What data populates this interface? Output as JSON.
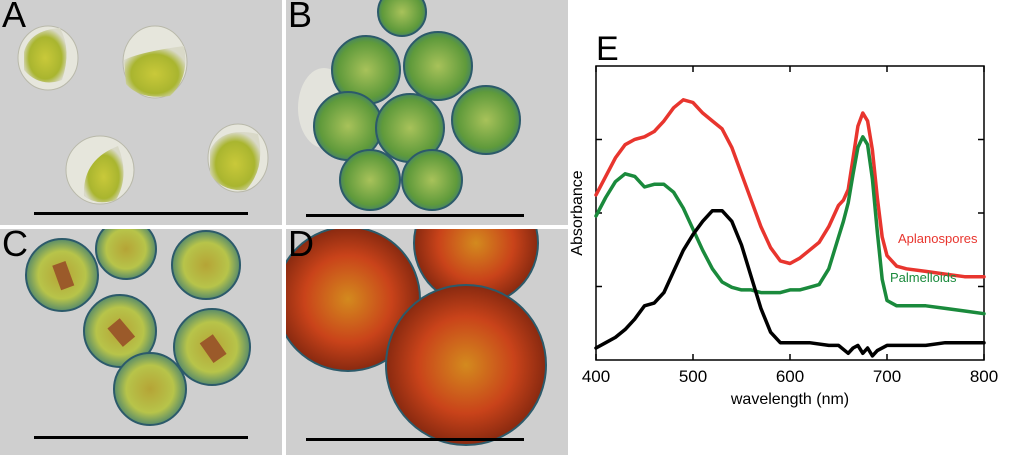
{
  "panels": [
    {
      "label": "A"
    },
    {
      "label": "B"
    },
    {
      "label": "C"
    },
    {
      "label": "D"
    }
  ],
  "colors": {
    "aplanospores": "#e8352e",
    "palmelloids": "#1a8a3c",
    "third": "#000000",
    "background_micrograph": "#cfcfcf"
  },
  "chart_data": {
    "type": "line",
    "panel_label": "E",
    "xlabel": "wavelength (nm)",
    "ylabel": "Absorbance",
    "xlim": [
      400,
      800
    ],
    "xticks": [
      "400",
      "500",
      "600",
      "700",
      "800"
    ],
    "ylim": [
      0,
      1
    ],
    "series": [
      {
        "name": "Aplanospores",
        "color": "#e8352e",
        "x": [
          400,
          410,
          420,
          430,
          440,
          450,
          460,
          470,
          480,
          490,
          500,
          510,
          520,
          530,
          540,
          550,
          560,
          570,
          580,
          590,
          600,
          610,
          620,
          630,
          640,
          650,
          655,
          660,
          665,
          670,
          675,
          680,
          685,
          690,
          695,
          700,
          710,
          720,
          740,
          760,
          780,
          800
        ],
        "y": [
          0.58,
          0.65,
          0.72,
          0.77,
          0.79,
          0.8,
          0.82,
          0.86,
          0.91,
          0.94,
          0.93,
          0.89,
          0.86,
          0.83,
          0.76,
          0.66,
          0.56,
          0.46,
          0.38,
          0.33,
          0.32,
          0.34,
          0.37,
          0.4,
          0.46,
          0.54,
          0.56,
          0.6,
          0.72,
          0.84,
          0.89,
          0.86,
          0.75,
          0.57,
          0.42,
          0.35,
          0.31,
          0.3,
          0.29,
          0.28,
          0.27,
          0.27
        ]
      },
      {
        "name": "Palmelloids",
        "color": "#1a8a3c",
        "x": [
          400,
          410,
          420,
          430,
          440,
          450,
          460,
          470,
          480,
          490,
          500,
          510,
          520,
          530,
          540,
          550,
          560,
          570,
          580,
          590,
          600,
          610,
          620,
          630,
          640,
          650,
          655,
          660,
          665,
          670,
          675,
          680,
          685,
          690,
          695,
          700,
          710,
          720,
          740,
          760,
          780,
          800
        ],
        "y": [
          0.5,
          0.57,
          0.63,
          0.66,
          0.65,
          0.61,
          0.62,
          0.62,
          0.59,
          0.53,
          0.45,
          0.37,
          0.3,
          0.25,
          0.23,
          0.22,
          0.22,
          0.21,
          0.21,
          0.21,
          0.22,
          0.22,
          0.23,
          0.24,
          0.3,
          0.42,
          0.48,
          0.55,
          0.66,
          0.76,
          0.8,
          0.77,
          0.64,
          0.44,
          0.26,
          0.18,
          0.16,
          0.16,
          0.16,
          0.15,
          0.14,
          0.13
        ]
      },
      {
        "name": "",
        "color": "#000000",
        "x": [
          400,
          410,
          420,
          430,
          440,
          450,
          460,
          470,
          480,
          490,
          500,
          510,
          520,
          530,
          540,
          550,
          560,
          570,
          580,
          590,
          600,
          620,
          640,
          650,
          660,
          665,
          670,
          675,
          680,
          685,
          690,
          700,
          720,
          740,
          760,
          780,
          800
        ],
        "y": [
          0.0,
          0.02,
          0.04,
          0.07,
          0.11,
          0.16,
          0.17,
          0.21,
          0.29,
          0.37,
          0.43,
          0.48,
          0.52,
          0.52,
          0.48,
          0.39,
          0.27,
          0.15,
          0.06,
          0.02,
          0.02,
          0.02,
          0.01,
          0.01,
          -0.02,
          0.0,
          0.01,
          -0.02,
          0.0,
          -0.03,
          -0.01,
          0.01,
          0.01,
          0.01,
          0.02,
          0.02,
          0.02
        ]
      }
    ],
    "grid": false,
    "legend": "inline-right"
  }
}
